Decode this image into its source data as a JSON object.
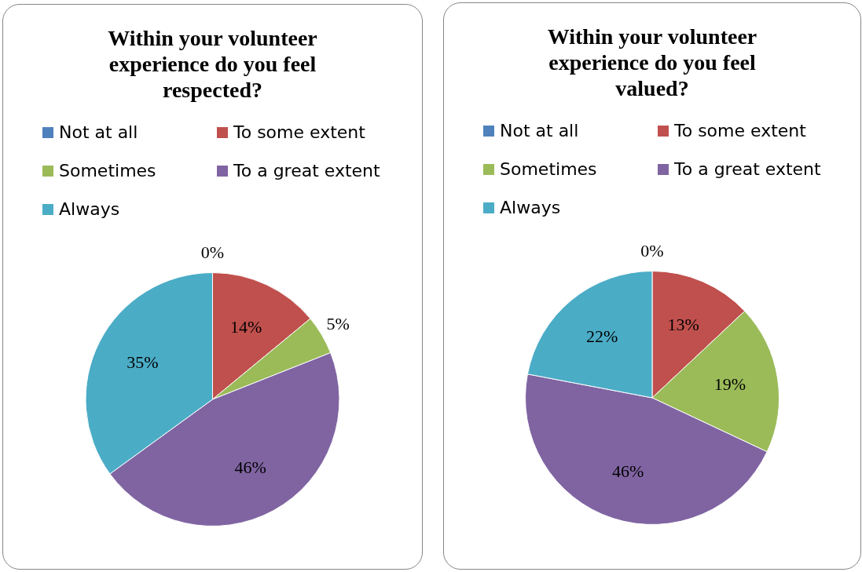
{
  "chart_data": [
    {
      "type": "pie",
      "title": "Within your volunteer experience do you feel respected?",
      "categories": [
        "Not at all",
        "To some extent",
        "Sometimes",
        "To a great extent",
        "Always"
      ],
      "values": [
        0,
        14,
        5,
        46,
        35
      ],
      "value_labels": [
        "0%",
        "14%",
        "5%",
        "46%",
        "35%"
      ],
      "colors": [
        "#4f81bd",
        "#c0504d",
        "#9bbb59",
        "#8064a2",
        "#4bacc6"
      ],
      "legend": "top"
    },
    {
      "type": "pie",
      "title": "Within your volunteer experience do you feel valued?",
      "categories": [
        "Not at all",
        "To some extent",
        "Sometimes",
        "To a great extent",
        "Always"
      ],
      "values": [
        0,
        13,
        19,
        46,
        22
      ],
      "value_labels": [
        "0%",
        "13%",
        "19%",
        "46%",
        "22%"
      ],
      "colors": [
        "#4f81bd",
        "#c0504d",
        "#9bbb59",
        "#8064a2",
        "#4bacc6"
      ],
      "legend": "top"
    }
  ]
}
